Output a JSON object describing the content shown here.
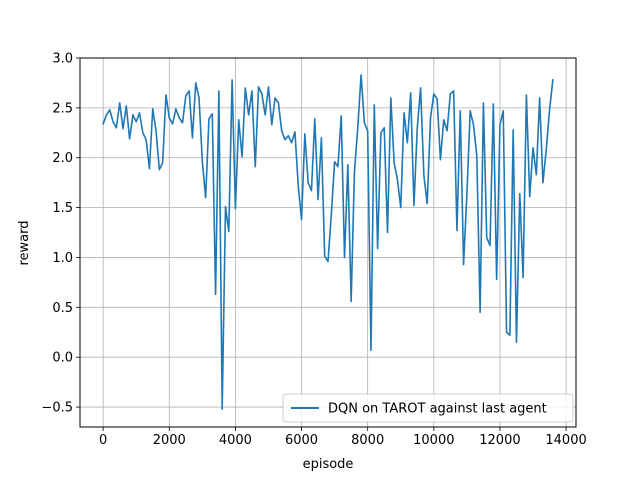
{
  "chart_data": {
    "type": "line",
    "title": "",
    "xlabel": "episode",
    "ylabel": "reward",
    "xlim": [
      -700,
      14300
    ],
    "ylim": [
      -0.7,
      3.0
    ],
    "xticks": [
      0,
      2000,
      4000,
      6000,
      8000,
      10000,
      12000,
      14000
    ],
    "xtick_labels": [
      "0",
      "2000",
      "4000",
      "6000",
      "8000",
      "10000",
      "12000",
      "14000"
    ],
    "yticks": [
      -0.5,
      0.0,
      0.5,
      1.0,
      1.5,
      2.0,
      2.5,
      3.0
    ],
    "ytick_labels": [
      "−0.5",
      "0.0",
      "0.5",
      "1.0",
      "1.5",
      "2.0",
      "2.5",
      "3.0"
    ],
    "grid": true,
    "legend_position": "lower right",
    "series": [
      {
        "name": "DQN on TAROT against last agent",
        "color": "#1f77b4",
        "x": [
          0,
          100,
          200,
          300,
          400,
          500,
          600,
          700,
          800,
          900,
          1000,
          1100,
          1200,
          1300,
          1400,
          1500,
          1600,
          1700,
          1800,
          1900,
          2000,
          2100,
          2200,
          2300,
          2400,
          2500,
          2600,
          2700,
          2800,
          2900,
          3000,
          3100,
          3200,
          3300,
          3400,
          3500,
          3600,
          3700,
          3800,
          3900,
          4000,
          4100,
          4200,
          4300,
          4400,
          4500,
          4600,
          4700,
          4800,
          4900,
          5000,
          5100,
          5200,
          5300,
          5400,
          5500,
          5600,
          5700,
          5800,
          5900,
          6000,
          6100,
          6200,
          6300,
          6400,
          6500,
          6600,
          6700,
          6800,
          6900,
          7000,
          7100,
          7200,
          7300,
          7400,
          7500,
          7600,
          7700,
          7800,
          7900,
          8000,
          8100,
          8200,
          8300,
          8400,
          8500,
          8600,
          8700,
          8800,
          8900,
          9000,
          9100,
          9200,
          9300,
          9400,
          9500,
          9600,
          9700,
          9800,
          9900,
          10000,
          10100,
          10200,
          10300,
          10400,
          10500,
          10600,
          10700,
          10800,
          10900,
          11000,
          11100,
          11200,
          11300,
          11400,
          11500,
          11600,
          11700,
          11800,
          11900,
          12000,
          12100,
          12200,
          12300,
          12400,
          12500,
          12600,
          12700,
          12800,
          12900,
          13000,
          13100,
          13200,
          13300,
          13400,
          13500,
          13600
        ],
        "y": [
          2.34,
          2.43,
          2.48,
          2.36,
          2.3,
          2.55,
          2.29,
          2.52,
          2.19,
          2.43,
          2.36,
          2.45,
          2.25,
          2.18,
          1.89,
          2.49,
          2.27,
          1.88,
          1.95,
          2.63,
          2.4,
          2.34,
          2.49,
          2.4,
          2.35,
          2.62,
          2.67,
          2.2,
          2.75,
          2.6,
          1.96,
          1.6,
          2.39,
          2.44,
          0.63,
          2.67,
          -0.52,
          1.51,
          1.26,
          2.78,
          1.49,
          2.38,
          2.01,
          2.7,
          2.43,
          2.67,
          1.91,
          2.71,
          2.64,
          2.43,
          2.71,
          2.33,
          2.6,
          2.55,
          2.27,
          2.18,
          2.22,
          2.15,
          2.26,
          1.72,
          1.38,
          2.24,
          1.75,
          1.67,
          2.39,
          1.58,
          2.2,
          1.01,
          0.96,
          1.43,
          1.96,
          1.91,
          2.42,
          1.0,
          1.93,
          0.56,
          1.86,
          2.3,
          2.83,
          2.35,
          2.27,
          0.07,
          2.53,
          1.09,
          2.25,
          2.3,
          1.25,
          2.6,
          1.95,
          1.78,
          1.5,
          2.45,
          2.15,
          2.65,
          1.52,
          2.3,
          2.7,
          1.82,
          1.54,
          2.4,
          2.64,
          2.59,
          1.98,
          2.38,
          2.27,
          2.64,
          2.67,
          1.27,
          2.47,
          0.93,
          1.63,
          2.47,
          2.33,
          2.02,
          0.45,
          2.55,
          1.2,
          1.12,
          2.54,
          0.78,
          2.33,
          2.47,
          0.25,
          0.22,
          2.28,
          0.15,
          1.64,
          0.8,
          2.63,
          1.61,
          2.1,
          1.83,
          2.6,
          1.75,
          2.08,
          2.48,
          2.78
        ]
      }
    ]
  }
}
